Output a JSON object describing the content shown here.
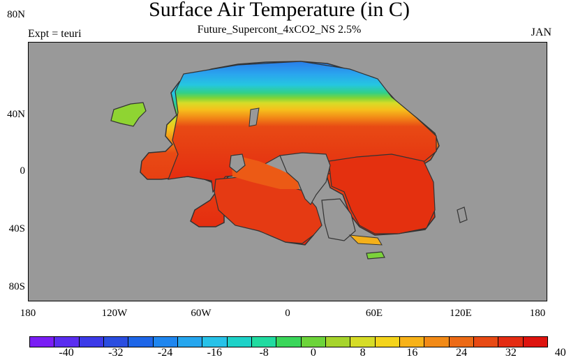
{
  "header": {
    "title": "Surface Air Temperature (in C)",
    "subtitle": "Future_Supercont_4xCO2_NS 2.5%",
    "left_label": "Expt = teuri",
    "right_label": "JAN"
  },
  "map": {
    "ocean_color": "#999999",
    "coast_color": "#333333",
    "lat_labels": [
      "80N",
      "40N",
      "0",
      "40S",
      "80S"
    ],
    "lon_labels": [
      "180",
      "120W",
      "60W",
      "0",
      "60E",
      "120E",
      "180"
    ]
  },
  "colorbar": {
    "colors": [
      "#7a1ef5",
      "#5a2df0",
      "#3c3ae8",
      "#2a4de0",
      "#1e66e8",
      "#1f86ef",
      "#26a6ee",
      "#28c2e8",
      "#1ed2c8",
      "#21dba0",
      "#3ad65a",
      "#6cd43a",
      "#a6d42c",
      "#d6dc28",
      "#f4d41c",
      "#f7b219",
      "#f28a17",
      "#ec6a16",
      "#e84a14",
      "#e42c12",
      "#de140f"
    ],
    "labels": [
      "-40",
      "-32",
      "-24",
      "-16",
      "-8",
      "0",
      "8",
      "16",
      "24",
      "32",
      "40"
    ]
  }
}
